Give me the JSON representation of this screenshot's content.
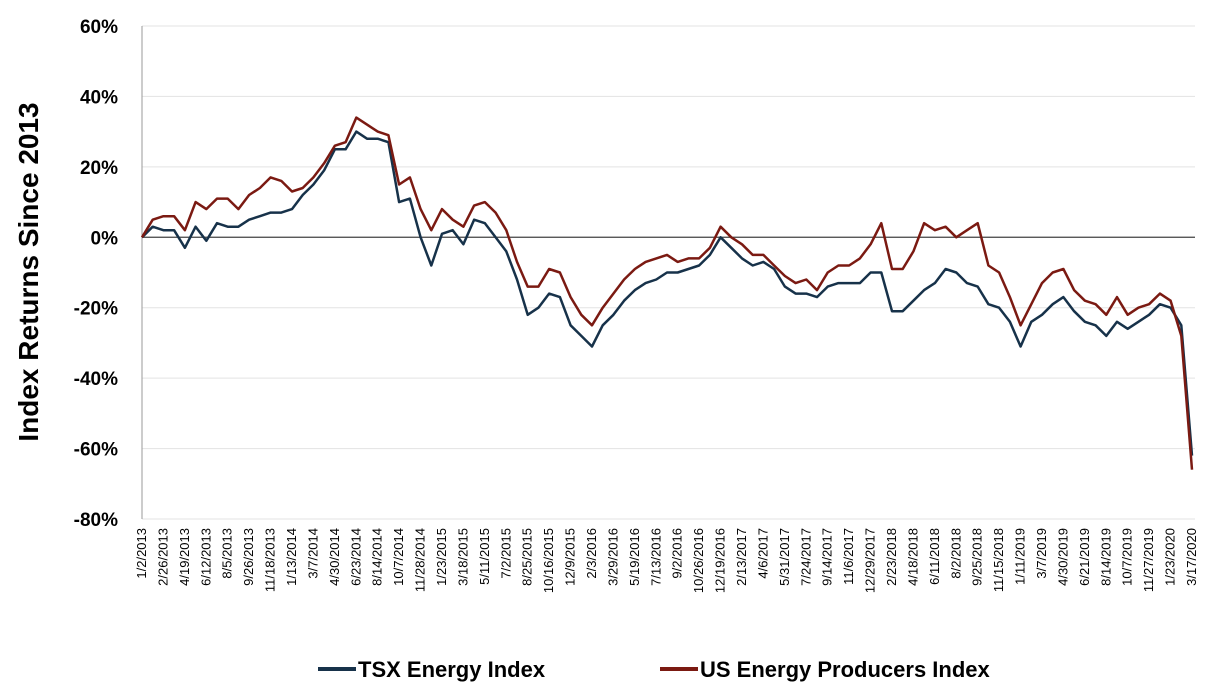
{
  "chart_data": {
    "type": "line",
    "y_label": "Index Returns Since 2013",
    "categories": [
      "1/2/2013",
      null,
      "2/26/2013",
      null,
      "4/19/2013",
      null,
      "6/12/2013",
      null,
      "8/5/2013",
      null,
      "9/26/2013",
      null,
      "11/18/2013",
      null,
      "1/13/2014",
      null,
      "3/7/2014",
      null,
      "4/30/2014",
      null,
      "6/23/2014",
      null,
      "8/14/2014",
      null,
      "10/7/2014",
      null,
      "11/28/2014",
      null,
      "1/23/2015",
      null,
      "3/18/2015",
      null,
      "5/11/2015",
      null,
      "7/2/2015",
      null,
      "8/25/2015",
      null,
      "10/16/2015",
      null,
      "12/9/2015",
      null,
      "2/3/2016",
      null,
      "3/29/2016",
      null,
      "5/19/2016",
      null,
      "7/13/2016",
      null,
      "9/2/2016",
      null,
      "10/26/2016",
      null,
      "12/19/2016",
      null,
      "2/13/2017",
      null,
      "4/6/2017",
      null,
      "5/31/2017",
      null,
      "7/24/2017",
      null,
      "9/14/2017",
      null,
      "11/6/2017",
      null,
      "12/29/2017",
      null,
      "2/23/2018",
      null,
      "4/18/2018",
      null,
      "6/11/2018",
      null,
      "8/2/2018",
      null,
      "9/25/2018",
      null,
      "11/15/2018",
      null,
      "1/11/2019",
      null,
      "3/7/2019",
      null,
      "4/30/2019",
      null,
      "6/21/2019",
      null,
      "8/14/2019",
      null,
      "10/7/2019",
      null,
      "11/27/2019",
      null,
      "1/23/2020",
      null,
      "3/17/2020"
    ],
    "series": [
      {
        "name": "TSX Energy Index",
        "color": "#17324a",
        "values": [
          0,
          3,
          2,
          2,
          -3,
          3,
          -1,
          4,
          3,
          3,
          5,
          6,
          7,
          7,
          8,
          12,
          15,
          19,
          25,
          25,
          30,
          28,
          28,
          27,
          10,
          11,
          0,
          -8,
          1,
          2,
          -2,
          5,
          4,
          0,
          -4,
          -12,
          -22,
          -20,
          -16,
          -17,
          -25,
          -28,
          -31,
          -25,
          -22,
          -18,
          -15,
          -13,
          -12,
          -10,
          -10,
          -9,
          -8,
          -5,
          0,
          -3,
          -6,
          -8,
          -7,
          -9,
          -14,
          -16,
          -16,
          -17,
          -14,
          -13,
          -13,
          -13,
          -10,
          -10,
          -21,
          -21,
          -18,
          -15,
          -13,
          -9,
          -10,
          -13,
          -14,
          -19,
          -20,
          -24,
          -31,
          -24,
          -22,
          -19,
          -17,
          -21,
          -24,
          -25,
          -28,
          -24,
          -26,
          -24,
          -22,
          -19,
          -20,
          -25,
          -62
        ]
      },
      {
        "name": "US Energy Producers Index",
        "color": "#7b1a12",
        "values": [
          0,
          5,
          6,
          6,
          2,
          10,
          8,
          11,
          11,
          8,
          12,
          14,
          17,
          16,
          13,
          14,
          17,
          21,
          26,
          27,
          34,
          32,
          30,
          29,
          15,
          17,
          8,
          2,
          8,
          5,
          3,
          9,
          10,
          7,
          2,
          -7,
          -14,
          -14,
          -9,
          -10,
          -17,
          -22,
          -25,
          -20,
          -16,
          -12,
          -9,
          -7,
          -6,
          -5,
          -7,
          -6,
          -6,
          -3,
          3,
          0,
          -2,
          -5,
          -5,
          -8,
          -11,
          -13,
          -12,
          -15,
          -10,
          -8,
          -8,
          -6,
          -2,
          4,
          -9,
          -9,
          -4,
          4,
          2,
          3,
          0,
          2,
          4,
          -8,
          -10,
          -17,
          -25,
          -19,
          -13,
          -10,
          -9,
          -15,
          -18,
          -19,
          -22,
          -17,
          -22,
          -20,
          -19,
          -16,
          -18,
          -28,
          -66
        ]
      }
    ],
    "ylim": [
      -80,
      60
    ],
    "yticks": [
      {
        "value": -80,
        "label": "-80%"
      },
      {
        "value": -60,
        "label": "-60%"
      },
      {
        "value": -40,
        "label": "-40%"
      },
      {
        "value": -20,
        "label": "-20%"
      },
      {
        "value": 0,
        "label": "0%"
      },
      {
        "value": 20,
        "label": "20%"
      },
      {
        "value": 40,
        "label": "40%"
      },
      {
        "value": 60,
        "label": "60%"
      }
    ],
    "grid": true
  }
}
